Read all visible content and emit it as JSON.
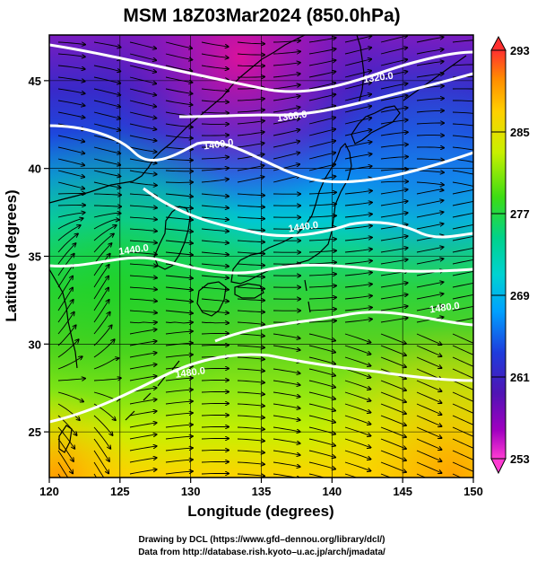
{
  "title": "MSM 18Z03Mar2024 (850.0hPa)",
  "x_axis": {
    "label": "Longitude (degrees)",
    "range": [
      120,
      150
    ],
    "ticks": [
      120,
      125,
      130,
      135,
      140,
      145,
      150
    ],
    "tick_labels": [
      "120",
      "125",
      "130",
      "135",
      "140",
      "145",
      "150"
    ]
  },
  "y_axis": {
    "label": "Latitude  (degrees)",
    "range": [
      22.4,
      47.6
    ],
    "ticks": [
      25,
      30,
      35,
      40,
      45
    ],
    "tick_labels": [
      "25",
      "30",
      "35",
      "40",
      "45"
    ]
  },
  "colorbar": {
    "min": 253,
    "max": 293,
    "labels": [
      "293",
      "285",
      "277",
      "269",
      "261",
      "253"
    ],
    "label_values": [
      293,
      285,
      277,
      269,
      261,
      253
    ],
    "colors": [
      "#ff4b4b",
      "#ff7a1e",
      "#ffae00",
      "#ffe000",
      "#c8f000",
      "#6be000",
      "#1ed21e",
      "#00d27a",
      "#00d2c8",
      "#00b4ff",
      "#0078ff",
      "#1e32d2",
      "#4b14b4",
      "#8c00b4",
      "#c800c8",
      "#ff32c8"
    ]
  },
  "contours": [
    {
      "label": "1320.0",
      "label_pos": [
        143.3,
        45.0
      ]
    },
    {
      "label": "1360.0",
      "label_pos": [
        137.2,
        42.8
      ]
    },
    {
      "label": "1400.0",
      "label_pos": [
        132.0,
        41.2
      ]
    },
    {
      "label": "1440.0",
      "label_pos": [
        138.0,
        36.5
      ]
    },
    {
      "label": "1440.0",
      "label_pos": [
        126.0,
        35.2
      ]
    },
    {
      "label": "1480.0",
      "label_pos": [
        148.0,
        31.9
      ]
    },
    {
      "label": "1480.0",
      "label_pos": [
        130.0,
        28.2
      ]
    }
  ],
  "credits": {
    "line1": "Drawing by DCL (https://www.gfd–dennou.org/library/dcl/)",
    "line2": "Data from http://database.rish.kyoto–u.ac.jp/arch/jmadata/"
  },
  "colors": {
    "contour": "#ffffff",
    "coast": "#000000",
    "grid": "#000000"
  }
}
